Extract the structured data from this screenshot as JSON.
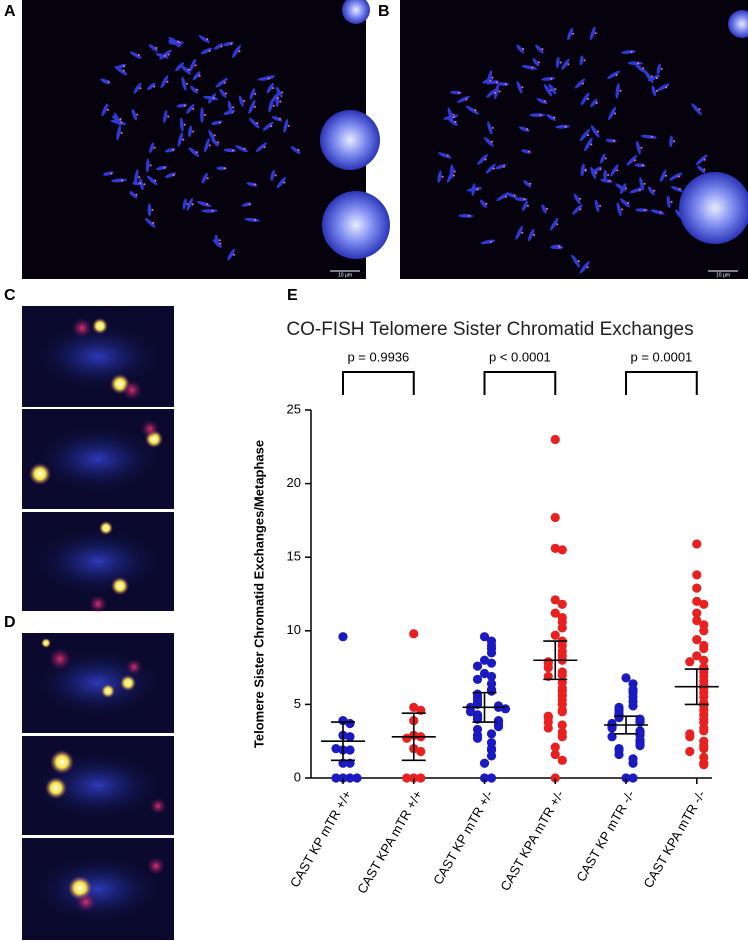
{
  "panel_labels": [
    "A",
    "B",
    "C",
    "D",
    "E"
  ],
  "scale_bars": [
    "10 µm",
    "10 µm"
  ],
  "chart_data": {
    "type": "dot_plot",
    "title": "CO-FISH Telomere Sister Chromatid Exchanges",
    "ylabel": "Telomere Sister Chromatid Exchanges/Metaphase",
    "ylim": [
      0,
      25
    ],
    "yticks": [
      0,
      5,
      10,
      15,
      20,
      25
    ],
    "annotations": [
      "p = 0.9936",
      "p < 0.0001",
      "p = 0.0001"
    ],
    "series": [
      {
        "name": "CAST KP mTR +/+",
        "color": "#1a1ac0",
        "mean": 2.5,
        "error": 1.3,
        "values": [
          9.6,
          3.9,
          3.7,
          2.9,
          2.8,
          1.9,
          1.9,
          2.0,
          1.0,
          1.0,
          0,
          0,
          0,
          0
        ]
      },
      {
        "name": "CAST KPA mTR +/+",
        "color": "#e8201f",
        "mean": 2.8,
        "error": 1.6,
        "values": [
          9.8,
          4.8,
          4.6,
          3.9,
          2.9,
          2.8,
          2.7,
          2.0,
          1.8,
          0,
          0,
          0
        ]
      },
      {
        "name": "CAST KP mTR +/-",
        "color": "#1a1ac0",
        "mean": 4.8,
        "error": 1.0,
        "values": [
          9.6,
          9.3,
          9.0,
          8.8,
          8.5,
          8.0,
          7.8,
          7.6,
          7.1,
          6.9,
          6.7,
          6.4,
          6.0,
          5.9,
          5.7,
          5.5,
          5.3,
          5.1,
          5.0,
          4.9,
          4.8,
          4.8,
          4.7,
          4.5,
          4.3,
          4.1,
          4.0,
          3.9,
          3.8,
          3.6,
          3.5,
          3.3,
          3.0,
          2.9,
          2.7,
          2.4,
          2.0,
          1.9,
          1.5,
          1.0,
          0,
          0
        ]
      },
      {
        "name": "CAST KPA mTR +/-",
        "color": "#e8201f",
        "mean": 8.0,
        "error": 1.3,
        "values": [
          23.0,
          17.7,
          15.6,
          15.5,
          12.1,
          11.8,
          11.2,
          10.9,
          10.6,
          10.2,
          9.7,
          9.3,
          9.0,
          8.6,
          8.3,
          8.0,
          7.9,
          7.8,
          7.5,
          7.2,
          7.0,
          6.9,
          6.5,
          6.1,
          5.9,
          5.6,
          5.3,
          5.0,
          4.6,
          4.5,
          4.2,
          4.1,
          3.8,
          3.6,
          3.4,
          3.1,
          2.8,
          2.1,
          1.6,
          1.2,
          0
        ]
      },
      {
        "name": "CAST KP mTR -/-",
        "color": "#1a1ac0",
        "mean": 3.6,
        "error": 0.6,
        "values": [
          6.8,
          6.4,
          6.0,
          5.8,
          5.5,
          5.2,
          4.9,
          4.8,
          4.6,
          4.4,
          4.3,
          4.1,
          4.0,
          3.9,
          3.8,
          3.7,
          3.6,
          3.5,
          3.4,
          3.2,
          3.1,
          3.0,
          2.9,
          2.8,
          2.6,
          2.5,
          2.4,
          2.2,
          2.0,
          1.9,
          1.6,
          1.3,
          1.0,
          0,
          0
        ]
      },
      {
        "name": "CAST KPA mTR -/-",
        "color": "#e8201f",
        "mean": 6.2,
        "error": 1.2,
        "values": [
          15.9,
          13.8,
          12.9,
          12.0,
          11.8,
          11.2,
          10.7,
          10.4,
          10.0,
          9.4,
          9.0,
          8.8,
          8.3,
          8.0,
          7.9,
          7.5,
          7.2,
          6.9,
          6.6,
          6.3,
          6.1,
          5.8,
          5.5,
          5.1,
          4.9,
          4.6,
          4.3,
          4.0,
          3.8,
          3.4,
          3.2,
          3.0,
          2.8,
          2.5,
          2.2,
          2.0,
          1.8,
          1.4,
          1.0,
          0.9
        ]
      }
    ]
  }
}
